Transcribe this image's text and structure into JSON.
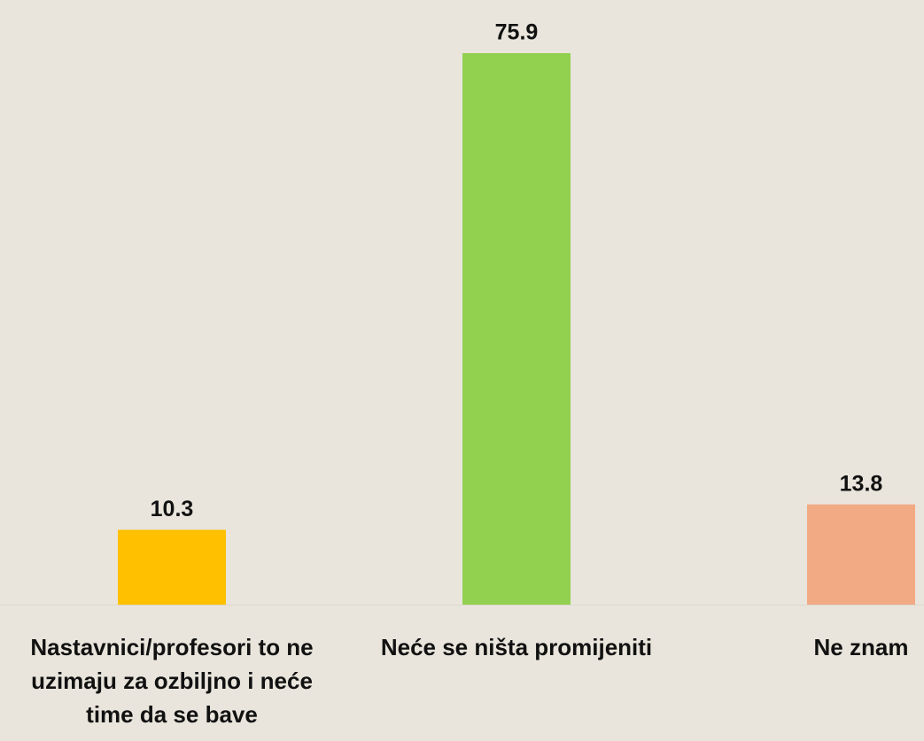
{
  "chart_data": {
    "type": "bar",
    "categories": [
      "Nastavnici/profesori to ne uzimaju za ozbiljno i neće time da se bave",
      "Neće se ništa promijeniti",
      "Ne znam"
    ],
    "values": [
      10.3,
      75.9,
      13.8
    ],
    "colors": [
      "#ffc000",
      "#92d050",
      "#f2aa84"
    ]
  }
}
